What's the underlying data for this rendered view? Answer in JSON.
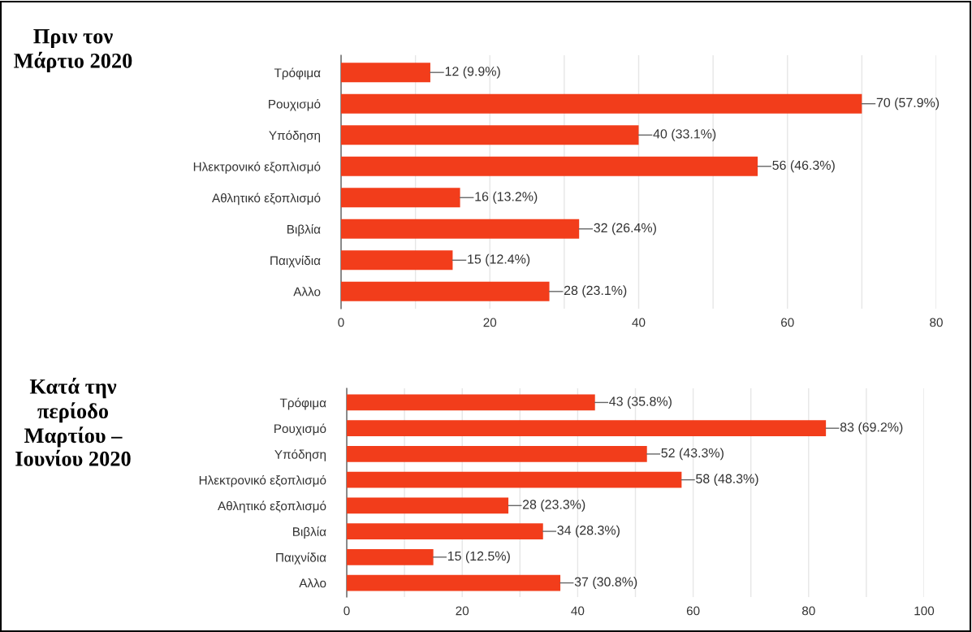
{
  "chart_data": [
    {
      "type": "bar",
      "orientation": "horizontal",
      "title": "Πριν τον Μάρτιο 2020",
      "categories": [
        "Τρόφιμα",
        "Ρουχισμό",
        "Υπόδηση",
        "Ηλεκτρονικό εξοπλισμό",
        "Αθλητικό εξοπλισμό",
        "Βιβλία",
        "Παιχνίδια",
        "Αλλο"
      ],
      "values": [
        12,
        70,
        40,
        56,
        16,
        32,
        15,
        28
      ],
      "value_labels": [
        "12 (9.9%)",
        "70 (57.9%)",
        "40 (33.1%)",
        "56 (46.3%)",
        "16 (13.2%)",
        "32 (26.4%)",
        "15 (12.4%)",
        "28 (23.1%)"
      ],
      "color": "#f23d1b",
      "xlim": [
        0,
        80
      ],
      "xticks": [
        0,
        {
          "value": 10,
          "label": null
        },
        20,
        {
          "value": 30,
          "label": null
        },
        40,
        {
          "value": 50,
          "label": null
        },
        60,
        {
          "value": 70,
          "label": null
        },
        80
      ],
      "grid": "x",
      "legend": false
    },
    {
      "type": "bar",
      "orientation": "horizontal",
      "title": "Κατά την περίοδο Μαρτίου – Ιουνίου 2020",
      "categories": [
        "Τρόφιμα",
        "Ρουχισμό",
        "Υπόδηση",
        "Ηλεκτρονικό εξοπλισμό",
        "Αθλητικό εξοπλισμό",
        "Βιβλία",
        "Παιχνίδια",
        "Αλλο"
      ],
      "values": [
        43,
        83,
        52,
        58,
        28,
        34,
        15,
        37
      ],
      "value_labels": [
        "43 (35.8%)",
        "83 (69.2%)",
        "52 (43.3%)",
        "58 (48.3%)",
        "28 (23.3%)",
        "34 (28.3%)",
        "15 (12.5%)",
        "37 (30.8%)"
      ],
      "color": "#f23d1b",
      "xlim": [
        0,
        100
      ],
      "xticks": [
        0,
        {
          "value": 10,
          "label": null
        },
        20,
        {
          "value": 30,
          "label": null
        },
        40,
        {
          "value": 50,
          "label": null
        },
        60,
        {
          "value": 70,
          "label": null
        },
        80,
        {
          "value": 90,
          "label": null
        },
        100
      ],
      "grid": "x",
      "legend": false
    }
  ]
}
